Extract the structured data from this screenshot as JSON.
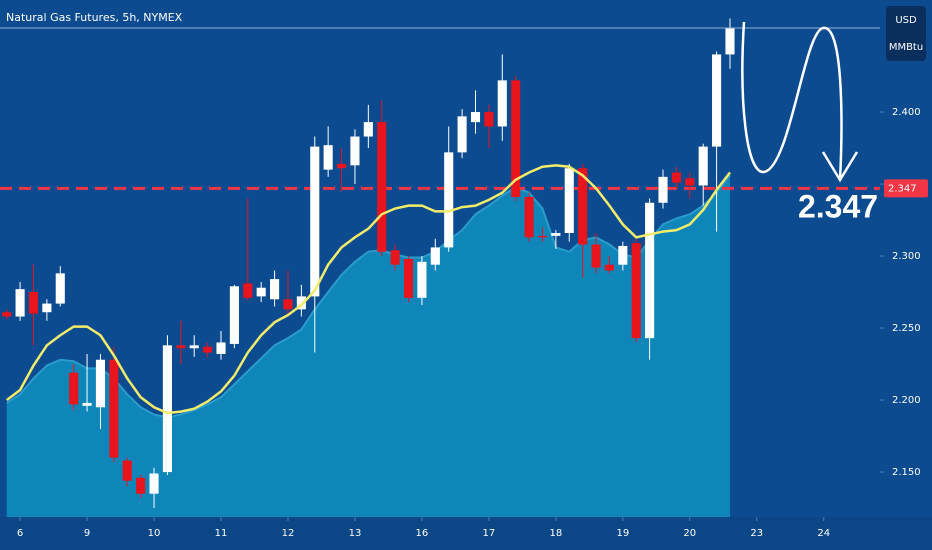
{
  "chart_data": {
    "type": "candlestick",
    "title": "Natural Gas Futures, 5h, NYMEX",
    "currency": "USD",
    "unit": "MMBtu",
    "x": [
      -0.2,
      0,
      0.2,
      0.4,
      0.6,
      0.8,
      1,
      1.2,
      1.4,
      1.6,
      1.8,
      2,
      2.2,
      2.4,
      2.6,
      2.8,
      3,
      3.2,
      3.4,
      3.6,
      3.8,
      4,
      4.2,
      4.4,
      4.6,
      4.8,
      5,
      5.2,
      5.4,
      5.6,
      5.8,
      6,
      6.2,
      6.4,
      6.6,
      6.8,
      7,
      7.2,
      7.4,
      7.6,
      7.8,
      8,
      8.2,
      8.4,
      8.6,
      8.8,
      9,
      9.2,
      9.4,
      9.6,
      9.8,
      10,
      10.2,
      10.4,
      10.6
    ],
    "open": [
      2.261,
      2.258,
      2.275,
      2.261,
      2.267,
      2.219,
      2.196,
      2.195,
      2.228,
      2.158,
      2.146,
      2.135,
      2.15,
      2.238,
      2.236,
      2.237,
      2.232,
      2.239,
      2.281,
      2.272,
      2.27,
      2.27,
      2.263,
      2.272,
      2.36,
      2.364,
      2.363,
      2.383,
      2.393,
      2.304,
      2.298,
      2.271,
      2.294,
      2.306,
      2.372,
      2.393,
      2.4,
      2.39,
      2.422,
      2.341,
      2.314,
      2.314,
      2.316,
      2.361,
      2.308,
      2.294,
      2.294,
      2.309,
      2.243,
      2.337,
      2.358,
      2.354,
      2.349,
      2.376,
      2.44
    ],
    "high": [
      2.263,
      2.282,
      2.294,
      2.27,
      2.293,
      2.225,
      2.232,
      2.232,
      2.237,
      2.16,
      2.148,
      2.153,
      2.245,
      2.255,
      2.245,
      2.24,
      2.248,
      2.28,
      2.34,
      2.282,
      2.29,
      2.29,
      2.28,
      2.383,
      2.39,
      2.375,
      2.388,
      2.405,
      2.408,
      2.308,
      2.3,
      2.3,
      2.312,
      2.39,
      2.402,
      2.415,
      2.405,
      2.44,
      2.425,
      2.344,
      2.32,
      2.318,
      2.364,
      2.364,
      2.316,
      2.3,
      2.31,
      2.312,
      2.34,
      2.36,
      2.362,
      2.358,
      2.378,
      2.442,
      2.465
    ],
    "low": [
      2.256,
      2.255,
      2.238,
      2.255,
      2.265,
      2.193,
      2.192,
      2.18,
      2.157,
      2.14,
      2.132,
      2.125,
      2.148,
      2.225,
      2.23,
      2.23,
      2.228,
      2.236,
      2.269,
      2.268,
      2.265,
      2.258,
      2.258,
      2.233,
      2.355,
      2.345,
      2.35,
      2.375,
      2.3,
      2.29,
      2.268,
      2.266,
      2.29,
      2.303,
      2.368,
      2.385,
      2.375,
      2.38,
      2.338,
      2.31,
      2.31,
      2.305,
      2.31,
      2.285,
      2.288,
      2.288,
      2.29,
      2.24,
      2.228,
      2.333,
      2.347,
      2.34,
      2.335,
      2.317,
      2.43
    ],
    "close": [
      2.258,
      2.277,
      2.26,
      2.267,
      2.288,
      2.197,
      2.198,
      2.228,
      2.16,
      2.144,
      2.135,
      2.149,
      2.238,
      2.236,
      2.238,
      2.233,
      2.24,
      2.279,
      2.271,
      2.278,
      2.284,
      2.263,
      2.272,
      2.376,
      2.377,
      2.361,
      2.383,
      2.393,
      2.303,
      2.294,
      2.271,
      2.296,
      2.306,
      2.372,
      2.397,
      2.4,
      2.39,
      2.422,
      2.341,
      2.313,
      2.313,
      2.316,
      2.361,
      2.308,
      2.292,
      2.29,
      2.307,
      2.243,
      2.337,
      2.355,
      2.351,
      2.349,
      2.376,
      2.44,
      2.458
    ],
    "up_color": "#ffffff",
    "down_color": "#e8141e",
    "area": {
      "color": "#0e86b9",
      "edge_color": "#2a9ccb",
      "values": [
        2.198,
        2.204,
        2.215,
        2.224,
        2.228,
        2.227,
        2.222,
        2.222,
        2.215,
        2.204,
        2.195,
        2.19,
        2.188,
        2.19,
        2.193,
        2.197,
        2.202,
        2.211,
        2.22,
        2.229,
        2.238,
        2.243,
        2.249,
        2.263,
        2.275,
        2.287,
        2.296,
        2.303,
        2.304,
        2.301,
        2.299,
        2.299,
        2.303,
        2.311,
        2.318,
        2.329,
        2.335,
        2.342,
        2.348,
        2.344,
        2.333,
        2.306,
        2.303,
        2.311,
        2.313,
        2.308,
        2.301,
        2.299,
        2.311,
        2.322,
        2.326,
        2.329,
        2.335,
        2.344,
        2.356
      ]
    },
    "lines": [
      {
        "color": "#f2ec6a",
        "values": [
          2.2,
          2.207,
          2.224,
          2.238,
          2.245,
          2.251,
          2.251,
          2.245,
          2.231,
          2.215,
          2.202,
          2.195,
          2.191,
          2.192,
          2.194,
          2.199,
          2.206,
          2.217,
          2.233,
          2.245,
          2.254,
          2.259,
          2.266,
          2.276,
          2.294,
          2.306,
          2.313,
          2.319,
          2.329,
          2.333,
          2.335,
          2.335,
          2.331,
          2.331,
          2.334,
          2.335,
          2.339,
          2.344,
          2.353,
          2.358,
          2.362,
          2.363,
          2.362,
          2.356,
          2.347,
          2.335,
          2.322,
          2.313,
          2.315,
          2.317,
          2.318,
          2.322,
          2.332,
          2.346,
          2.358
        ]
      }
    ],
    "hline": {
      "value": 2.347,
      "label": "2.347",
      "color": "#f23645"
    },
    "annotations": [
      {
        "text": "2.347"
      }
    ],
    "xlim": [
      -0.3,
      12.84
    ],
    "ylim": [
      2.1188,
      2.4778
    ],
    "xticks": [
      {
        "value": 0,
        "label": "6"
      },
      {
        "value": 1,
        "label": "9"
      },
      {
        "value": 2,
        "label": "10"
      },
      {
        "value": 3,
        "label": "11"
      },
      {
        "value": 4,
        "label": "12"
      },
      {
        "value": 5,
        "label": "13"
      },
      {
        "value": 6,
        "label": "16"
      },
      {
        "value": 7,
        "label": "17"
      },
      {
        "value": 8,
        "label": "18"
      },
      {
        "value": 9,
        "label": "19"
      },
      {
        "value": 10,
        "label": "20"
      },
      {
        "value": 11,
        "label": "23"
      },
      {
        "value": 12,
        "label": "24"
      }
    ],
    "yticks": [
      {
        "value": 2.15,
        "label": "2.150"
      },
      {
        "value": 2.2,
        "label": "2.200"
      },
      {
        "value": 2.25,
        "label": "2.250"
      },
      {
        "value": 2.3,
        "label": "2.300"
      },
      {
        "value": 2.35,
        "label": "2.350"
      },
      {
        "value": 2.4,
        "label": "2.400"
      }
    ]
  }
}
